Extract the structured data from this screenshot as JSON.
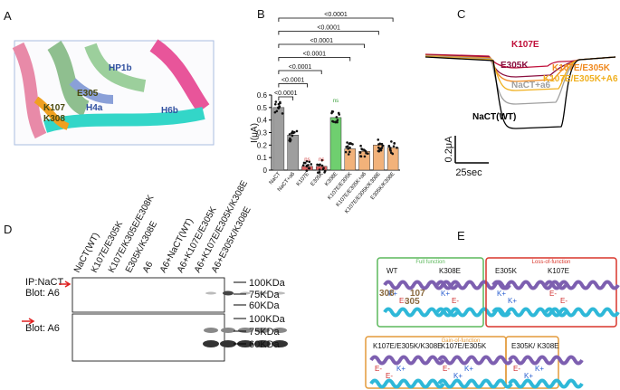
{
  "panels": {
    "a": "A",
    "b": "B",
    "c": "C",
    "d": "D",
    "e": "E"
  },
  "panel_a": {
    "labels": [
      "HP1b",
      "H4a",
      "H6b",
      "K107",
      "K308",
      "E305"
    ]
  },
  "chart_data": {
    "type": "bar",
    "ylabel": "I(μA)",
    "categories": [
      "NaCT",
      "NaCT+a6",
      "K107E",
      "E305K",
      "K308E",
      "K107E/E305K",
      "K107E/E305K+a6",
      "K107E/E305K/K308E",
      "E305K/K308E"
    ],
    "values": [
      0.5,
      0.28,
      0.03,
      0.03,
      0.42,
      0.17,
      0.15,
      0.2,
      0.18
    ],
    "colors": [
      "#9e9e9e",
      "#9e9e9e",
      "#e06060",
      "#e06060",
      "#6fcf6f",
      "#f2b27a",
      "#f2b27a",
      "#f2b27a",
      "#f2b27a"
    ],
    "ylim": [
      0,
      0.6
    ],
    "yticks": [
      0,
      0.1,
      0.2,
      0.3,
      0.4,
      0.5,
      0.6
    ],
    "comparisons": [
      {
        "to": "E305K/K308E",
        "label": "<0.0001"
      },
      {
        "to": "K107E/E305K/K308E",
        "label": "<0.0001"
      },
      {
        "to": "K107E/E305K+a6",
        "label": "<0.0001"
      },
      {
        "to": "K107E/E305K",
        "label": "<0.0001"
      },
      {
        "to": "E305K",
        "label": "<0.0001"
      },
      {
        "to": "K107E",
        "label": "<0.0001"
      },
      {
        "to": "NaCT+a6",
        "label": "<0.0001"
      }
    ],
    "ns": [
      {
        "at": "K107E",
        "label": "ns",
        "color": "#d04040"
      },
      {
        "at": "E305K",
        "label": "ns",
        "color": "#d04040"
      },
      {
        "at": "K308E",
        "label": "ns",
        "color": "#3aa03a"
      }
    ]
  },
  "panel_c": {
    "traces": [
      {
        "name": "K107E",
        "color": "#c0103a"
      },
      {
        "name": "E305K",
        "color": "#8b1040"
      },
      {
        "name": "K107E/E305K",
        "color": "#f08a20"
      },
      {
        "name": "NaCT+a6",
        "color": "#a0a0a0"
      },
      {
        "name": "K107E/E305K+A6",
        "color": "#f0b020"
      },
      {
        "name": "NaCT(WT)",
        "color": "#000000"
      }
    ],
    "scale_y": "0.2μA",
    "scale_x": "25sec"
  },
  "panel_d": {
    "lanes": [
      "NaCT(WT)",
      "K107E/E305K",
      "K107E/K305E/E308K",
      "E305K/K308E",
      "A6",
      "A6+NaCT(WT)",
      "A6+K107E/E305K",
      "A6+K107E/E305K/K308E",
      "A6+E305K/K308E"
    ],
    "row_labels": [
      [
        "IP:NaCT",
        "Blot: A6"
      ],
      [
        "Blot: A6"
      ]
    ],
    "markers": [
      [
        "100KDa",
        "75KDa",
        "60KDa"
      ],
      [
        "100KDa",
        "75KDa",
        "60KDa"
      ]
    ]
  },
  "panel_e": {
    "groups": [
      {
        "title": "Full function",
        "color": "#5cb85c",
        "items": [
          {
            "name": "WT",
            "charges": [
              "K+",
              "E-"
            ],
            "numbers": [
              "308",
              "107",
              "305"
            ]
          },
          {
            "name": "K308E",
            "charges": [
              "K+",
              "E-"
            ]
          }
        ]
      },
      {
        "title": "Loss-of-function",
        "color": "#d9362b",
        "items": [
          {
            "name": "E305K",
            "charges": [
              "K+",
              "K+"
            ]
          },
          {
            "name": "K107E",
            "charges": [
              "E-",
              "E-"
            ]
          }
        ]
      },
      {
        "title": "Gain-of-function",
        "color": "#e39a3a",
        "items": [
          {
            "name": "K107E/E305K/K308E",
            "charges": [
              "E-",
              "E-",
              "K+"
            ]
          },
          {
            "name": "K107E/E305K",
            "charges": [
              "E-",
              "K+",
              "K+"
            ]
          },
          {
            "name": "E305K/\nK308E",
            "charges": [
              "E-",
              "K+",
              "K+"
            ]
          }
        ]
      }
    ]
  }
}
